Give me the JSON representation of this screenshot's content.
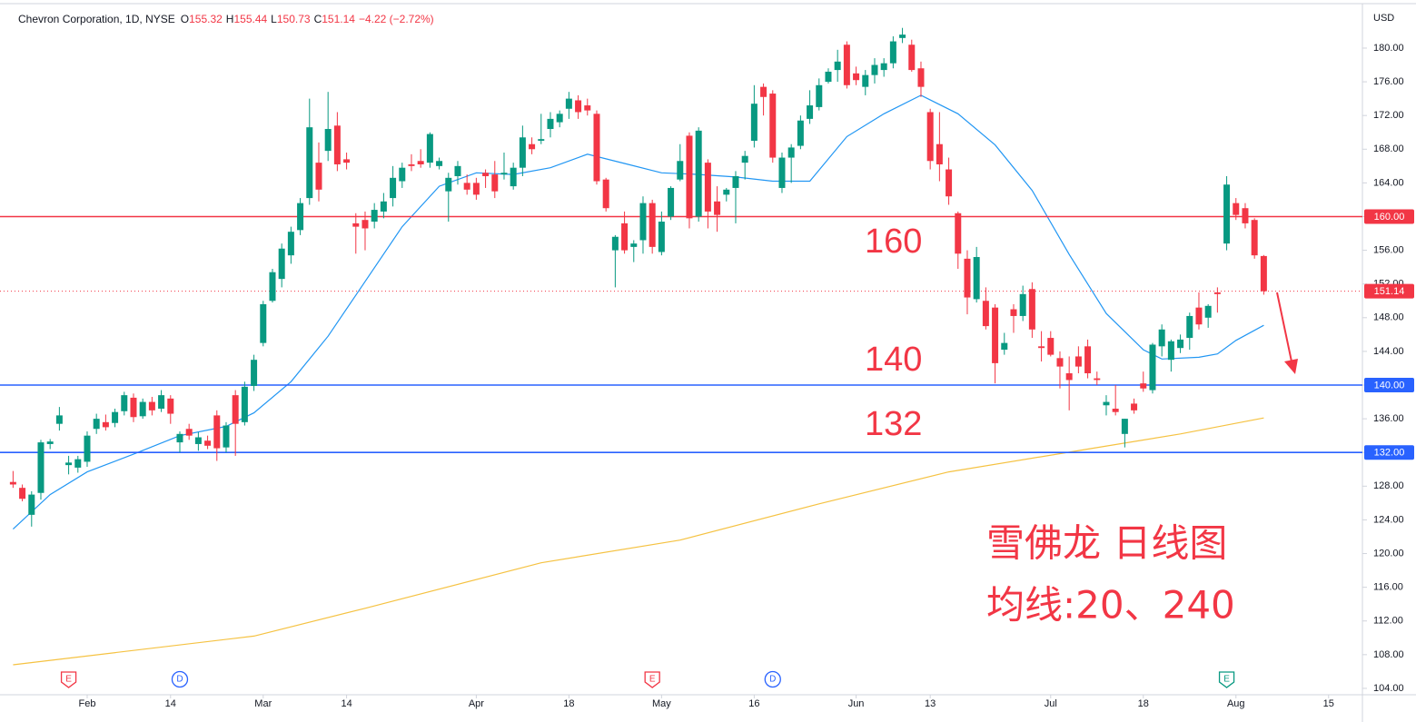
{
  "header": {
    "symbol": "Chevron Corporation, 1D, NYSE",
    "fields": [
      {
        "label": "O",
        "value": "155.32"
      },
      {
        "label": "H",
        "value": "155.44"
      },
      {
        "label": "L",
        "value": "150.73"
      },
      {
        "label": "C",
        "value": "151.14"
      }
    ],
    "change": "−4.22 (−2.72%)"
  },
  "chart_data": {
    "type": "candlestick",
    "currency": "USD",
    "up_color": "#089981",
    "down_color": "#f23645",
    "xlim": [
      -1.41,
      145.65
    ],
    "xticks": [
      {
        "value": 8,
        "label": "Feb"
      },
      {
        "value": 17,
        "label": "14"
      },
      {
        "value": 27,
        "label": "Mar"
      },
      {
        "value": 36,
        "label": "14"
      },
      {
        "value": 50,
        "label": "Apr"
      },
      {
        "value": 60,
        "label": "18"
      },
      {
        "value": 70,
        "label": "May"
      },
      {
        "value": 80,
        "label": "16"
      },
      {
        "value": 91,
        "label": "Jun"
      },
      {
        "value": 99,
        "label": "13"
      },
      {
        "value": 112,
        "label": "Jul"
      },
      {
        "value": 122,
        "label": "18"
      },
      {
        "value": 132,
        "label": "Aug"
      },
      {
        "value": 142,
        "label": "15"
      }
    ],
    "ylim": [
      103.24,
      185.71
    ],
    "yticks": [
      {
        "value": 104,
        "label": "104.00"
      },
      {
        "value": 108,
        "label": "108.00"
      },
      {
        "value": 112,
        "label": "112.00"
      },
      {
        "value": 116,
        "label": "116.00"
      },
      {
        "value": 120,
        "label": "120.00"
      },
      {
        "value": 124,
        "label": "124.00"
      },
      {
        "value": 128,
        "label": "128.00"
      },
      {
        "value": 132,
        "label": "132.00"
      },
      {
        "value": 136,
        "label": "136.00"
      },
      {
        "value": 140,
        "label": "140.00"
      },
      {
        "value": 144,
        "label": "144.00"
      },
      {
        "value": 148,
        "label": "148.00"
      },
      {
        "value": 152,
        "label": "152.00"
      },
      {
        "value": 156,
        "label": "156.00"
      },
      {
        "value": 160,
        "label": "160.00"
      },
      {
        "value": 164,
        "label": "164.00"
      },
      {
        "value": 168,
        "label": "168.00"
      },
      {
        "value": 172,
        "label": "172.00"
      },
      {
        "value": 176,
        "label": "176.00"
      },
      {
        "value": 180,
        "label": "180.00"
      }
    ],
    "open": [
      128.5,
      127.8,
      124.6,
      127.2,
      133,
      135.4,
      130.5,
      130.2,
      130.9,
      134.8,
      135.6,
      135.5,
      136.9,
      138.5,
      136.3,
      138,
      137.2,
      138.4,
      133.2,
      134.8,
      133,
      133.4,
      136.4,
      132.6,
      138.8,
      135.6,
      139.9,
      145,
      150,
      152.6,
      155.4,
      158.4,
      162.2,
      166.4,
      167.8,
      170.8,
      166.8,
      159.2,
      159.6,
      159.4,
      160.6,
      162.2,
      164.2,
      166.2,
      166.6,
      166.4,
      166,
      163,
      164.8,
      164,
      164,
      165.2,
      165,
      165,
      163.6,
      165.8,
      168.6,
      169,
      170.4,
      171.2,
      172.8,
      173.8,
      173.2,
      172.2,
      164.4,
      156,
      159.2,
      156.4,
      157.2,
      161.6,
      155.8,
      160,
      164.4,
      169.6,
      160,
      166.4,
      161.8,
      162.6,
      163.4,
      166.4,
      169,
      175.4,
      174.6,
      163.4,
      167,
      168.4,
      171.6,
      173,
      176,
      177.4,
      180.4,
      177,
      175.4,
      176.8,
      177.4,
      178.2,
      181.2,
      180.4,
      177.6,
      172.4,
      168.6,
      165.6,
      160.4,
      155,
      150.2,
      150,
      149.2,
      144.2,
      149,
      148.2,
      151.4,
      144.6,
      145.6,
      143.2,
      141.4,
      143.4,
      144.6,
      140.8,
      137.6,
      137.2,
      134.2,
      137.8,
      140.2,
      139.4,
      144.6,
      143,
      144.4,
      145.6,
      149.2,
      148,
      151,
      156.8,
      161.6,
      161,
      159.6,
      155.32
    ],
    "high": [
      129.8,
      128.2,
      127.4,
      133.5,
      133.6,
      137.4,
      131.6,
      131.6,
      134.5,
      136.6,
      136.5,
      137.2,
      139.2,
      139,
      138.4,
      138.6,
      139.4,
      138.8,
      134.5,
      135.4,
      134.4,
      134,
      137,
      135.6,
      139.4,
      140.4,
      143.6,
      150,
      153.8,
      156.8,
      158.8,
      162.2,
      174,
      168.8,
      174.8,
      172.4,
      167.6,
      160.4,
      160.6,
      161.6,
      162.8,
      166,
      166.4,
      167.4,
      168,
      170,
      167,
      165.2,
      166.6,
      165,
      164.6,
      165.6,
      166.6,
      167.6,
      166.4,
      170.8,
      169.4,
      172.2,
      172.4,
      172.6,
      174.8,
      174.4,
      174,
      172.6,
      164.6,
      157.8,
      160.6,
      157.2,
      162.4,
      162,
      160.6,
      163.6,
      168.6,
      170,
      170.6,
      166.8,
      163.6,
      163.4,
      165.4,
      167.8,
      175.6,
      175.8,
      175,
      167.6,
      168.6,
      172,
      175,
      176.4,
      177.6,
      179.8,
      180.8,
      177.8,
      177.4,
      178.8,
      178.8,
      181.4,
      182.4,
      181,
      178.4,
      172.8,
      172.4,
      167,
      160.6,
      156,
      156.4,
      151.6,
      149.6,
      146.2,
      149.6,
      151.8,
      152.2,
      146.4,
      146.4,
      144,
      143.4,
      144.6,
      145.4,
      141.6,
      138.8,
      140,
      136,
      138.4,
      141.6,
      145,
      147.2,
      145.4,
      146,
      148.6,
      151,
      149.6,
      151.6,
      164.8,
      162.2,
      161.6,
      159.8,
      155.44
    ],
    "low": [
      127.8,
      126.2,
      123.2,
      126.4,
      132.4,
      134.6,
      129.4,
      129.6,
      130.3,
      134.2,
      134.6,
      135,
      136.4,
      135.6,
      136,
      136.4,
      136.8,
      135.4,
      132,
      133.5,
      132.2,
      132.4,
      131,
      132,
      131.6,
      135.2,
      139.3,
      144.6,
      149.8,
      151.6,
      154.4,
      157.8,
      161.4,
      161.8,
      166.6,
      165.4,
      165.6,
      155.6,
      156,
      158.6,
      159.8,
      161.2,
      163.4,
      165.4,
      165.8,
      165.8,
      165.6,
      159.4,
      163.8,
      162.6,
      162,
      163.4,
      162.2,
      164.4,
      163.2,
      164.8,
      167.4,
      168.6,
      169.4,
      170.6,
      171.6,
      171.6,
      172,
      163.8,
      160.6,
      151.6,
      155.6,
      154.6,
      155.6,
      155.6,
      155.4,
      159.6,
      164.2,
      158.6,
      159.4,
      158.6,
      158.2,
      161.8,
      159.2,
      164.4,
      168.2,
      172,
      166.4,
      162.8,
      164,
      168,
      171,
      172.6,
      175.8,
      176,
      175.2,
      175.6,
      174.4,
      175.8,
      176.6,
      177.6,
      180.6,
      177.2,
      174.2,
      165.6,
      164.2,
      161.4,
      153.8,
      148.4,
      149.8,
      146.6,
      140.2,
      143.6,
      146.2,
      147.6,
      145.6,
      142.8,
      143.4,
      139.6,
      137,
      141.4,
      140.8,
      140,
      136.4,
      136.4,
      132.6,
      136.6,
      139.2,
      139,
      143.4,
      141.6,
      143.8,
      144.2,
      146.6,
      146.8,
      148.6,
      156,
      159.6,
      158.6,
      155,
      150.73
    ],
    "close": [
      128.2,
      126.5,
      127,
      133.2,
      133.3,
      136.4,
      130.8,
      131.2,
      134,
      136,
      135,
      136.8,
      138.8,
      136.2,
      138,
      137,
      138.8,
      136.6,
      134.2,
      134,
      133.8,
      132.8,
      132.5,
      135.2,
      135.4,
      139.8,
      143,
      149.6,
      153.4,
      156.2,
      158.2,
      161.6,
      170.6,
      163.2,
      170.4,
      166.2,
      166.4,
      158.8,
      158.6,
      160.8,
      161.8,
      164.6,
      165.8,
      166,
      166.2,
      169.8,
      166.6,
      164.6,
      166,
      163.2,
      162.6,
      164.8,
      163,
      165.2,
      165.8,
      169.4,
      168,
      169.2,
      171.6,
      172.2,
      174,
      172.4,
      172.6,
      164.2,
      161,
      157.6,
      156,
      156.8,
      161.6,
      156.4,
      159.4,
      163.4,
      166.6,
      159.8,
      170.2,
      160.6,
      160.2,
      163.2,
      164.8,
      167.2,
      173.4,
      174.2,
      167,
      167,
      168.2,
      171.4,
      173.2,
      175.6,
      177.2,
      178.4,
      175.6,
      176.2,
      176.8,
      178,
      178.2,
      180.8,
      181.6,
      177.4,
      175.4,
      166.6,
      166.2,
      162.4,
      155.6,
      150.4,
      155.2,
      147,
      142.6,
      145,
      148.2,
      150.8,
      146.6,
      144.4,
      143.6,
      142.2,
      140.6,
      142.2,
      141.4,
      140.6,
      138,
      136.8,
      136,
      137,
      139.6,
      144.8,
      146.6,
      145.2,
      145.4,
      148.2,
      147.2,
      149.4,
      150.8,
      163.8,
      160.2,
      159.2,
      155.4,
      151.14
    ],
    "moving_averages": [
      {
        "color": "#2196f3",
        "x": [
          0,
          4,
          8,
          13,
          18,
          23,
          26,
          30,
          34,
          38,
          42,
          46,
          50,
          54,
          58,
          62,
          66,
          70,
          74,
          78,
          82,
          86,
          90,
          94,
          98,
          102,
          106,
          110,
          114,
          118,
          122,
          124,
          128,
          130,
          132,
          135
        ],
        "values": [
          122.9,
          127,
          129.7,
          131.8,
          134,
          135.1,
          136.7,
          140.4,
          145.8,
          152.3,
          158.8,
          163.6,
          165.2,
          165,
          165.8,
          167.4,
          166.3,
          165.2,
          165,
          164.7,
          164.2,
          164.2,
          169.5,
          172.2,
          174.4,
          172.2,
          168.5,
          163.1,
          155.5,
          148.5,
          144.2,
          143.1,
          143.3,
          143.7,
          145.3,
          147.1
        ]
      },
      {
        "color": "#f5c242",
        "x": [
          0,
          26,
          38,
          57,
          72,
          87,
          101,
          116,
          126,
          135
        ],
        "values": [
          106.8,
          110.2,
          113.5,
          118.9,
          121.6,
          125.9,
          129.7,
          132.4,
          134.2,
          136.1
        ]
      }
    ],
    "levels": [
      {
        "value": 160,
        "label": "160.00",
        "color": "#f23645"
      },
      {
        "value": 140,
        "label": "140.00",
        "color": "#2962ff"
      },
      {
        "value": 132,
        "label": "132.00",
        "color": "#2962ff"
      }
    ],
    "last_price": {
      "value": 151.14,
      "label": "151.14",
      "color": "#f23645"
    },
    "events": [
      {
        "label": "E",
        "x": 6,
        "color": "#f23645"
      },
      {
        "label": "D",
        "x": 18,
        "color": "#2962ff"
      },
      {
        "label": "E",
        "x": 69,
        "color": "#f23645"
      },
      {
        "label": "D",
        "x": 82,
        "color": "#2962ff"
      },
      {
        "label": "E",
        "x": 131,
        "color": "#089981"
      }
    ],
    "annotations": [
      "160",
      "140",
      "132",
      "雪佛龙 日线图",
      "均线:20、240"
    ]
  }
}
